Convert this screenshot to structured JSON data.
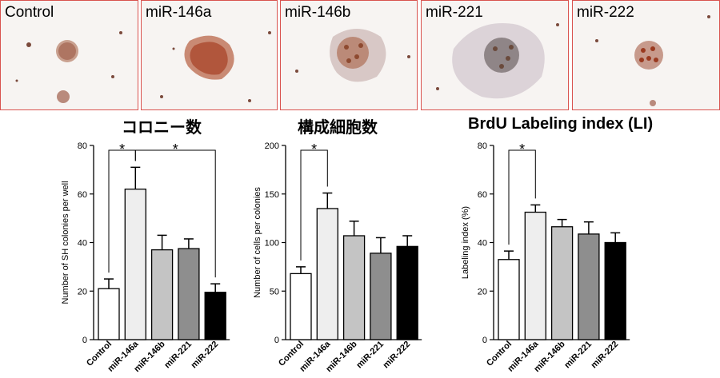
{
  "panels": [
    {
      "label": "Control"
    },
    {
      "label": "miR-146a"
    },
    {
      "label": "miR-146b"
    },
    {
      "label": "miR-221"
    },
    {
      "label": "miR-222"
    }
  ],
  "colors": {
    "panel_border": "#d9534f",
    "bar_colors": [
      "#ffffff",
      "#eeeeee",
      "#c4c4c4",
      "#8e8e8e",
      "#000000"
    ]
  },
  "chart_data": [
    {
      "type": "bar",
      "title": "コロニー数",
      "ylabel": "Number of SH colonies per well",
      "categories": [
        "Control",
        "miR-146a",
        "miR-146b",
        "miR-221",
        "miR-222"
      ],
      "values": [
        21,
        62,
        37,
        37.5,
        19.5
      ],
      "errors": [
        4,
        9,
        6,
        4,
        3.5
      ],
      "ylim": [
        0,
        80
      ],
      "yticks": [
        "0",
        "20",
        "40",
        "60",
        "80"
      ],
      "significance": [
        {
          "from": 0,
          "to": 1,
          "label": "*"
        },
        {
          "from": 1,
          "to": 4,
          "label": "*"
        }
      ]
    },
    {
      "type": "bar",
      "title": "構成細胞数",
      "ylabel": "Number of cells per colonies",
      "categories": [
        "Control",
        "miR-146a",
        "miR-146b",
        "miR-221",
        "miR-222"
      ],
      "values": [
        68,
        135,
        107,
        89,
        96
      ],
      "errors": [
        7,
        16,
        15,
        16,
        11
      ],
      "ylim": [
        0,
        200
      ],
      "yticks": [
        "0",
        "50",
        "100",
        "150",
        "200"
      ],
      "significance": [
        {
          "from": 0,
          "to": 1,
          "label": "*"
        }
      ]
    },
    {
      "type": "bar",
      "title": "BrdU Labeling index (LI)",
      "ylabel": "Labeling index (%)",
      "categories": [
        "Control",
        "miR-146a",
        "miR-146b",
        "miR-221",
        "miR-222"
      ],
      "values": [
        33,
        52.5,
        46.5,
        43.5,
        40
      ],
      "errors": [
        3.5,
        3,
        3,
        5,
        4
      ],
      "ylim": [
        0,
        80
      ],
      "yticks": [
        "0",
        "20",
        "40",
        "60",
        "80"
      ],
      "significance": [
        {
          "from": 0,
          "to": 1,
          "label": "*"
        }
      ]
    }
  ]
}
